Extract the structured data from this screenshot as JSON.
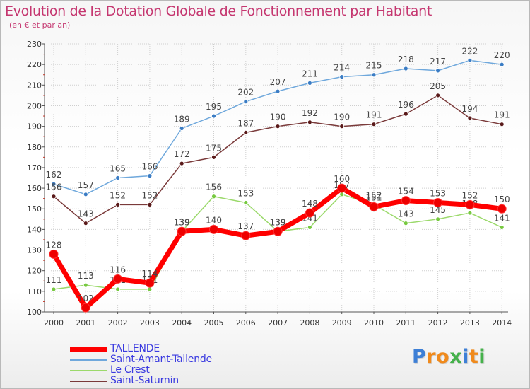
{
  "chart_data": {
    "type": "line",
    "title": "Evolution de la Dotation Globale de Fonctionnement par Habitant",
    "subtitle": "(en € et par an)",
    "xlabel": "",
    "ylabel": "",
    "ylim": [
      100,
      230
    ],
    "yticks": [
      100,
      110,
      120,
      130,
      140,
      150,
      160,
      170,
      180,
      190,
      200,
      210,
      220,
      230
    ],
    "x": [
      "2000",
      "2001",
      "2002",
      "2003",
      "2004",
      "2005",
      "2006",
      "2007",
      "2008",
      "2009",
      "2010",
      "2011",
      "2012",
      "2013",
      "2014"
    ],
    "grid": true,
    "legend_position": "bottom-left",
    "series": [
      {
        "name": "Saint-Amant-Tallende",
        "color": "#6fa8dc",
        "marker": "#3a7cc4",
        "values": [
          162,
          157,
          165,
          166,
          189,
          195,
          202,
          207,
          211,
          214,
          215,
          218,
          217,
          222,
          220
        ]
      },
      {
        "name": "Saint-Saturnin",
        "color": "#7a3a3a",
        "marker": "#5a1a1a",
        "values": [
          156,
          143,
          152,
          152,
          172,
          175,
          187,
          190,
          192,
          190,
          191,
          196,
          205,
          194,
          191
        ]
      },
      {
        "name": "Le Crest",
        "color": "#9bd96b",
        "marker": "#77c940",
        "values": [
          111,
          113,
          111,
          111,
          139,
          156,
          153,
          139,
          141,
          157,
          152,
          143,
          145,
          148,
          141
        ]
      },
      {
        "name": "TALLENDE",
        "color": "#ff0000",
        "marker": "#ee0000",
        "values": [
          128,
          102,
          116,
          114,
          139,
          140,
          137,
          139,
          148,
          160,
          151,
          154,
          153,
          152,
          150
        ]
      }
    ]
  },
  "legend": {
    "items": [
      {
        "label": "TALLENDE",
        "color": "#ff0000",
        "thick": true
      },
      {
        "label": "Saint-Amant-Tallende",
        "color": "#6fa8dc",
        "thick": false
      },
      {
        "label": "Le Crest",
        "color": "#9bd96b",
        "thick": false
      },
      {
        "label": "Saint-Saturnin",
        "color": "#7a3a3a",
        "thick": false
      }
    ]
  },
  "logo": {
    "letters": [
      "P",
      "r",
      "o",
      "x",
      "i",
      "t",
      "i"
    ],
    "colors": [
      "#3d7fd6",
      "#f08a1c",
      "#f08a1c",
      "#44b14a",
      "#3d7fd6",
      "#f08a1c",
      "#44b14a"
    ]
  }
}
